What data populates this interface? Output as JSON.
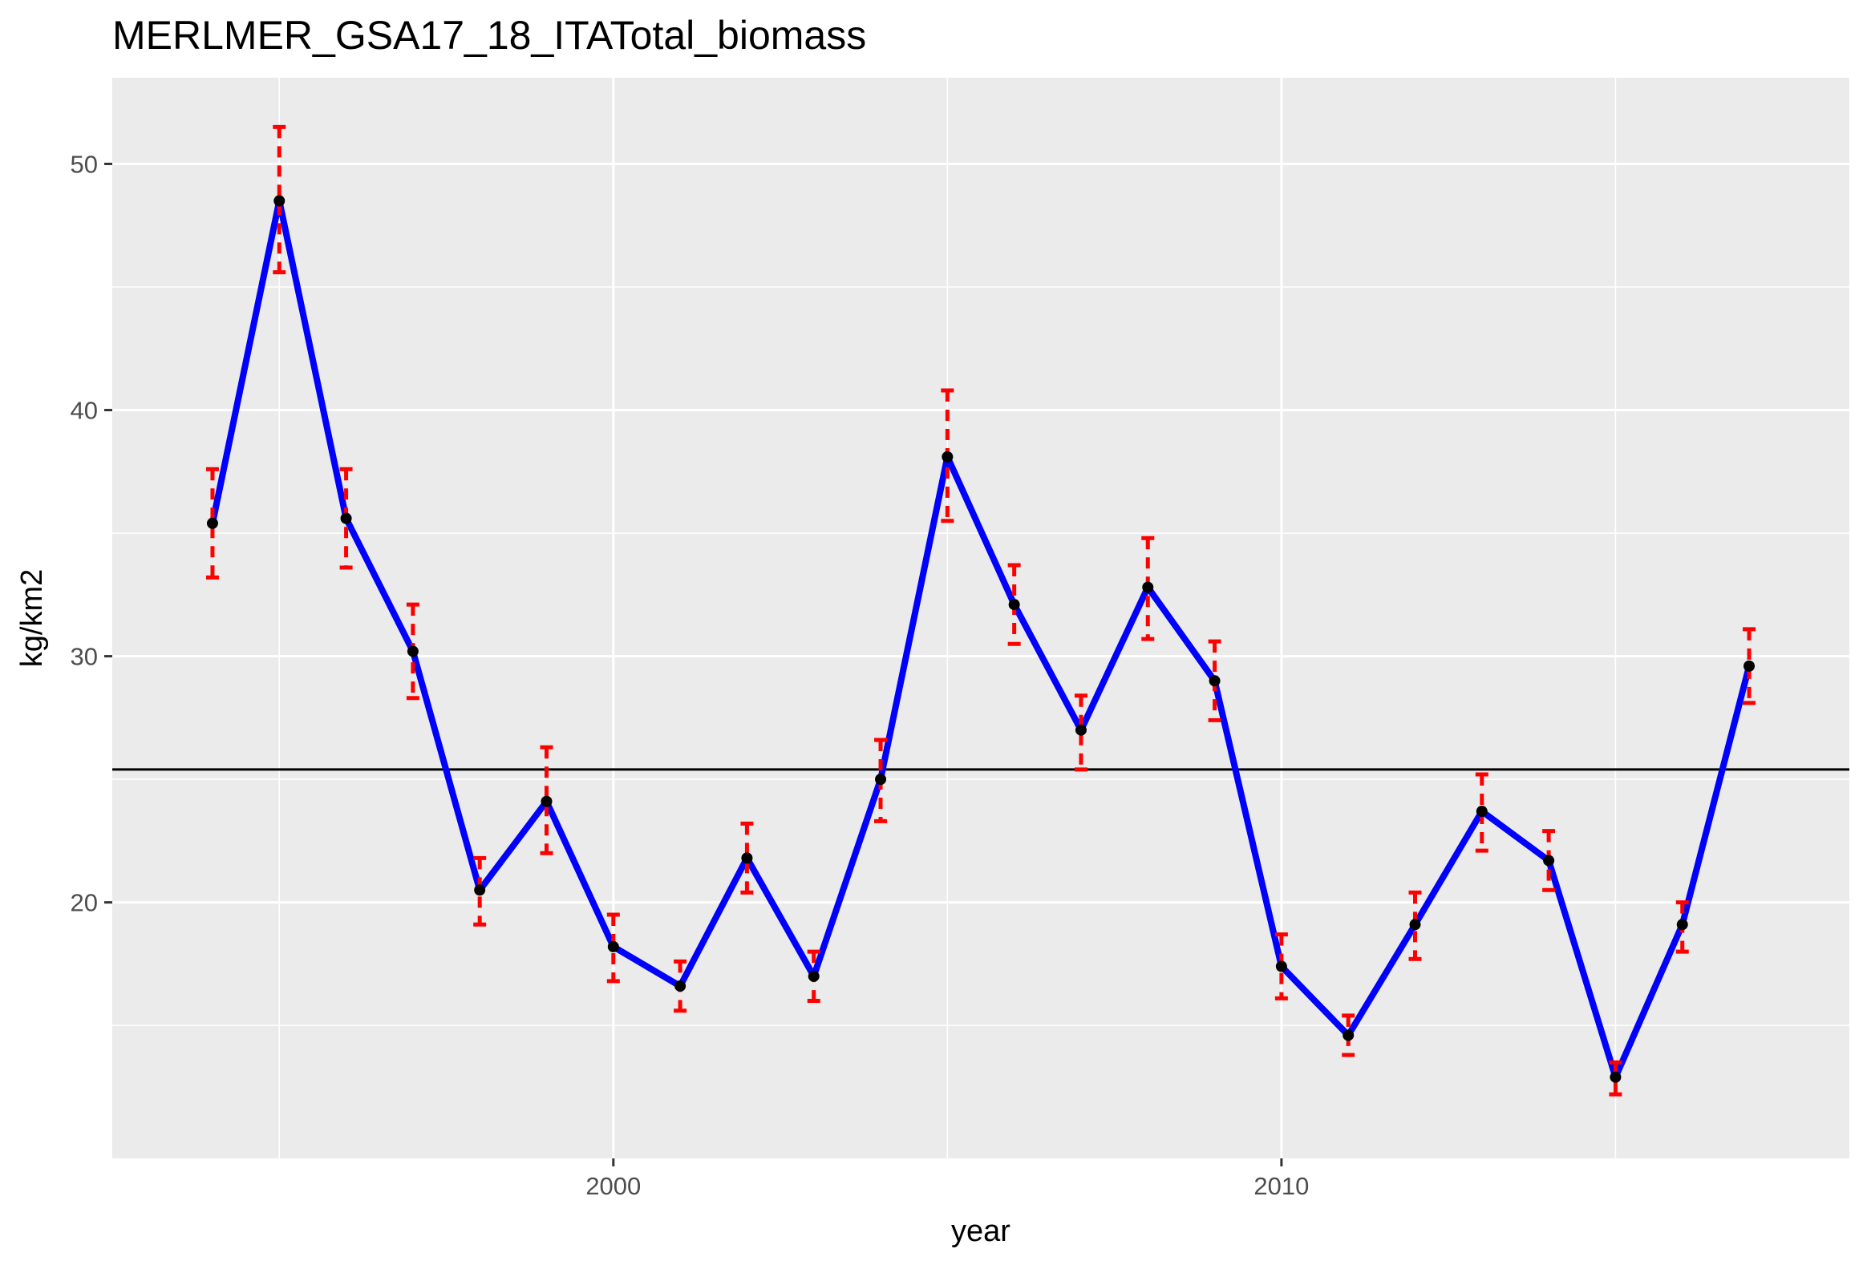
{
  "chart_data": {
    "type": "line",
    "title": "MERLMER_GSA17_18_ITATotal_biomass",
    "xlabel": "year",
    "ylabel": "kg/km2",
    "x": [
      1994,
      1995,
      1996,
      1997,
      1998,
      1999,
      2000,
      2001,
      2002,
      2003,
      2004,
      2005,
      2006,
      2007,
      2008,
      2009,
      2010,
      2011,
      2012,
      2013,
      2014,
      2015,
      2016,
      2017
    ],
    "y": [
      35.4,
      48.5,
      35.6,
      30.2,
      20.5,
      24.1,
      18.2,
      16.6,
      21.8,
      17.0,
      25.0,
      38.1,
      32.1,
      27.0,
      32.8,
      29.0,
      17.4,
      14.6,
      19.1,
      23.7,
      21.7,
      12.9,
      19.1,
      29.6
    ],
    "lower": [
      33.2,
      45.6,
      33.6,
      28.3,
      19.1,
      22.0,
      16.8,
      15.6,
      20.4,
      16.0,
      23.3,
      35.5,
      30.5,
      25.4,
      30.7,
      27.4,
      16.1,
      13.8,
      17.7,
      22.1,
      20.5,
      12.2,
      18.0,
      28.1
    ],
    "upper": [
      37.6,
      51.5,
      37.6,
      32.1,
      21.8,
      26.3,
      19.5,
      17.6,
      23.2,
      18.0,
      26.6,
      40.8,
      33.7,
      28.4,
      34.8,
      30.6,
      18.7,
      15.4,
      20.4,
      25.2,
      22.9,
      13.5,
      20.0,
      31.1
    ],
    "reference_line": 25.4,
    "xlim": [
      1992.5,
      2018.5
    ],
    "ylim": [
      9.6,
      53.5
    ],
    "x_ticks": [
      2000,
      2010
    ],
    "x_minor_ticks": [
      1995,
      2005,
      2015
    ],
    "y_ticks": [
      20,
      30,
      40,
      50
    ],
    "y_minor_ticks": [
      15,
      25,
      35,
      45
    ],
    "grid": true,
    "colors": {
      "panel_background": "#ebebeb",
      "grid": "#ffffff",
      "line": "#0000ff",
      "points": "#000000",
      "error_bars": "#ff0000",
      "reference_line": "#000000"
    }
  }
}
